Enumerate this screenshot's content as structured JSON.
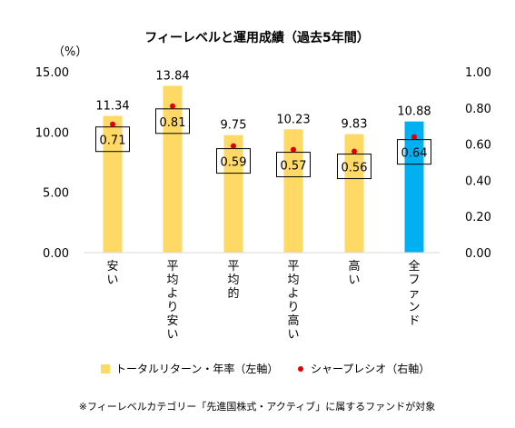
{
  "chart_data": {
    "type": "bar",
    "title": "フィーレベルと運用成績（過去5年間）",
    "left_axis_unit": "（%）",
    "left_ylim": [
      0,
      15
    ],
    "left_ticks": [
      "0.00",
      "5.00",
      "10.00",
      "15.00"
    ],
    "right_ylim": [
      0,
      1
    ],
    "right_ticks": [
      "0.00",
      "0.20",
      "0.40",
      "0.60",
      "0.80",
      "1.00"
    ],
    "grid": false,
    "categories": [
      "安い",
      "平均より安い",
      "平均的",
      "平均より高い",
      "高い",
      "全ファンド"
    ],
    "series": [
      {
        "name": "トータルリターン・年率（左軸）",
        "kind": "bar",
        "axis": "left",
        "values": [
          11.34,
          13.84,
          9.75,
          10.23,
          9.83,
          10.88
        ],
        "labels": [
          "11.34",
          "13.84",
          "9.75",
          "10.23",
          "9.83",
          "10.88"
        ],
        "colors": [
          "#FFD966",
          "#FFD966",
          "#FFD966",
          "#FFD966",
          "#FFD966",
          "#00B0F0"
        ]
      },
      {
        "name": "シャープレシオ（右軸）",
        "kind": "point",
        "axis": "right",
        "values": [
          0.71,
          0.81,
          0.59,
          0.57,
          0.56,
          0.64
        ],
        "labels": [
          "0.71",
          "0.81",
          "0.59",
          "0.57",
          "0.56",
          "0.64"
        ],
        "color": "#E00000"
      }
    ],
    "legend_position": "bottom",
    "footnote": "※フィーレベルカテゴリー「先進国株式・アクティブ」に属するファンドが対象"
  }
}
